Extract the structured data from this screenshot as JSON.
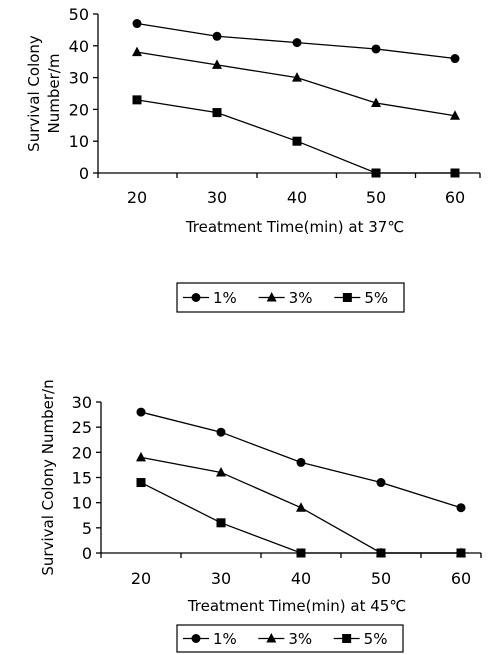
{
  "chart_data": [
    {
      "type": "line",
      "x": [
        20,
        30,
        40,
        50,
        60
      ],
      "xlabel": "Treatment Time(min) at 37℃",
      "ylabel": "Survival Colony Number/ml",
      "ylim": [
        0,
        50
      ],
      "yticks": [
        0,
        10,
        20,
        30,
        40,
        50
      ],
      "grid": false,
      "legend_position": "bottom",
      "series": [
        {
          "name": "1%",
          "marker": "circle",
          "values": [
            47,
            43,
            41,
            39,
            36
          ]
        },
        {
          "name": "3%",
          "marker": "triangle",
          "values": [
            38,
            34,
            30,
            22,
            18
          ]
        },
        {
          "name": "5%",
          "marker": "square",
          "values": [
            23,
            19,
            10,
            0,
            0
          ]
        }
      ]
    },
    {
      "type": "line",
      "x": [
        20,
        30,
        40,
        50,
        60
      ],
      "xlabel": "Treatment Time(min) at 45℃",
      "ylabel": "Survival Colony Number/n",
      "ylim": [
        0,
        30
      ],
      "yticks": [
        0,
        5,
        10,
        15,
        20,
        25,
        30
      ],
      "grid": false,
      "legend_position": "bottom",
      "series": [
        {
          "name": "1%",
          "marker": "circle",
          "values": [
            28,
            24,
            18,
            14,
            9
          ]
        },
        {
          "name": "3%",
          "marker": "triangle",
          "values": [
            19,
            16,
            9,
            0,
            0
          ]
        },
        {
          "name": "5%",
          "marker": "square",
          "values": [
            14,
            6,
            0,
            0,
            0
          ]
        }
      ]
    }
  ]
}
